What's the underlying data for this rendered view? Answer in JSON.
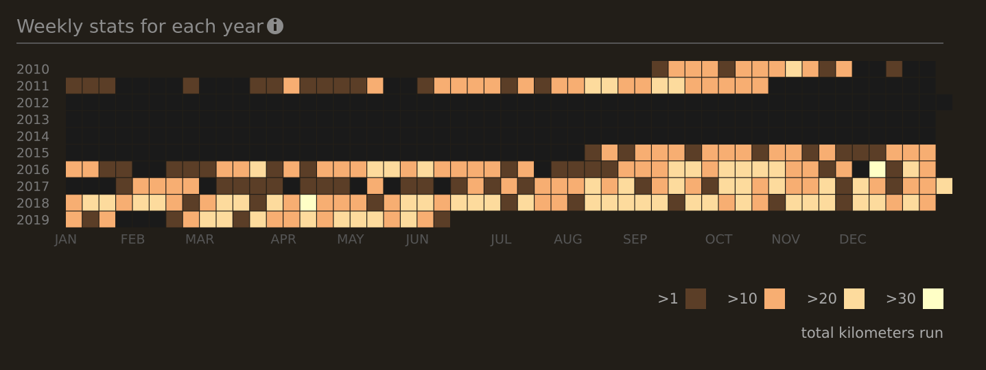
{
  "chart_data": {
    "type": "heatmap",
    "title": "Weekly stats for each year",
    "empty_color": "#1a1a1a",
    "series": [
      {
        "name": "2010",
        "values": [
          null,
          null,
          null,
          null,
          null,
          null,
          null,
          null,
          null,
          null,
          null,
          null,
          null,
          null,
          null,
          null,
          null,
          null,
          null,
          null,
          null,
          null,
          null,
          null,
          null,
          null,
          null,
          null,
          null,
          null,
          null,
          null,
          null,
          null,
          null,
          1,
          10,
          10,
          10,
          1,
          10,
          10,
          10,
          20,
          10,
          1,
          10,
          0,
          0,
          1,
          0,
          0,
          null
        ]
      },
      {
        "name": "2011",
        "values": [
          1,
          1,
          1,
          0,
          0,
          0,
          0,
          1,
          0,
          0,
          0,
          1,
          1,
          10,
          1,
          1,
          1,
          1,
          10,
          0,
          0,
          1,
          10,
          10,
          10,
          10,
          1,
          10,
          1,
          10,
          10,
          20,
          20,
          10,
          10,
          20,
          20,
          10,
          10,
          10,
          10,
          10,
          0,
          0,
          0,
          0,
          0,
          0,
          0,
          0,
          0,
          0,
          null
        ]
      },
      {
        "name": "2012",
        "values": [
          0,
          0,
          0,
          0,
          0,
          0,
          0,
          0,
          0,
          0,
          0,
          0,
          0,
          0,
          0,
          0,
          0,
          0,
          0,
          0,
          0,
          0,
          0,
          0,
          0,
          0,
          0,
          0,
          0,
          0,
          0,
          0,
          0,
          0,
          0,
          0,
          0,
          0,
          0,
          0,
          0,
          0,
          0,
          0,
          0,
          0,
          0,
          0,
          0,
          0,
          0,
          0,
          0
        ]
      },
      {
        "name": "2013",
        "values": [
          0,
          0,
          0,
          0,
          0,
          0,
          0,
          0,
          0,
          0,
          0,
          0,
          0,
          0,
          0,
          0,
          0,
          0,
          0,
          0,
          0,
          0,
          0,
          0,
          0,
          0,
          0,
          0,
          0,
          0,
          0,
          0,
          0,
          0,
          0,
          0,
          0,
          0,
          0,
          0,
          0,
          0,
          0,
          0,
          0,
          0,
          0,
          0,
          0,
          0,
          0,
          0,
          null
        ]
      },
      {
        "name": "2014",
        "values": [
          0,
          0,
          0,
          0,
          0,
          0,
          0,
          0,
          0,
          0,
          0,
          0,
          0,
          0,
          0,
          0,
          0,
          0,
          0,
          0,
          0,
          0,
          0,
          0,
          0,
          0,
          0,
          0,
          0,
          0,
          0,
          0,
          0,
          0,
          0,
          0,
          0,
          0,
          0,
          0,
          0,
          0,
          0,
          0,
          0,
          0,
          0,
          0,
          0,
          0,
          0,
          0,
          null
        ]
      },
      {
        "name": "2015",
        "values": [
          0,
          0,
          0,
          0,
          0,
          0,
          0,
          0,
          0,
          0,
          0,
          0,
          0,
          0,
          0,
          0,
          0,
          0,
          0,
          0,
          0,
          0,
          0,
          0,
          0,
          0,
          0,
          0,
          0,
          0,
          0,
          1,
          10,
          1,
          10,
          10,
          10,
          1,
          10,
          10,
          10,
          1,
          10,
          10,
          1,
          10,
          1,
          1,
          1,
          10,
          10,
          10,
          null
        ]
      },
      {
        "name": "2016",
        "values": [
          10,
          10,
          1,
          1,
          0,
          0,
          1,
          1,
          1,
          10,
          10,
          20,
          1,
          10,
          1,
          10,
          10,
          10,
          20,
          20,
          10,
          20,
          10,
          10,
          10,
          10,
          1,
          10,
          0,
          1,
          1,
          1,
          1,
          10,
          10,
          10,
          20,
          20,
          10,
          20,
          20,
          20,
          20,
          10,
          10,
          1,
          10,
          0,
          30,
          1,
          20,
          10,
          null
        ]
      },
      {
        "name": "2017",
        "values": [
          0,
          0,
          0,
          1,
          10,
          10,
          10,
          10,
          0,
          1,
          1,
          1,
          1,
          0,
          1,
          1,
          1,
          0,
          10,
          0,
          1,
          1,
          0,
          1,
          10,
          1,
          10,
          1,
          10,
          10,
          10,
          20,
          10,
          20,
          1,
          10,
          20,
          10,
          1,
          20,
          20,
          10,
          20,
          10,
          10,
          20,
          1,
          20,
          10,
          1,
          10,
          10,
          20
        ]
      },
      {
        "name": "2018",
        "values": [
          10,
          20,
          20,
          10,
          20,
          20,
          10,
          1,
          10,
          20,
          20,
          1,
          20,
          10,
          30,
          10,
          10,
          10,
          1,
          10,
          20,
          20,
          10,
          20,
          20,
          20,
          1,
          20,
          10,
          10,
          1,
          20,
          20,
          20,
          20,
          20,
          1,
          20,
          20,
          10,
          20,
          10,
          1,
          20,
          20,
          20,
          1,
          20,
          20,
          10,
          20,
          10,
          null
        ]
      },
      {
        "name": "2019",
        "values": [
          10,
          1,
          10,
          0,
          0,
          0,
          1,
          10,
          20,
          20,
          1,
          20,
          10,
          10,
          20,
          10,
          20,
          20,
          20,
          10,
          20,
          10,
          1,
          null,
          null,
          null,
          null,
          null,
          null,
          null,
          null,
          null,
          null,
          null,
          null,
          null,
          null,
          null,
          null,
          null,
          null,
          null,
          null,
          null,
          null,
          null,
          null,
          null,
          null,
          null,
          null,
          null,
          null
        ]
      }
    ],
    "xticks": [
      {
        "value": 0,
        "label": "JAN"
      },
      {
        "value": 4,
        "label": "FEB"
      },
      {
        "value": 8,
        "label": "MAR"
      },
      {
        "value": 13,
        "label": "APR"
      },
      {
        "value": 17,
        "label": "MAY"
      },
      {
        "value": 21,
        "label": "JUN"
      },
      {
        "value": 26,
        "label": "JUL"
      },
      {
        "value": 30,
        "label": "AUG"
      },
      {
        "value": 34,
        "label": "SEP"
      },
      {
        "value": 39,
        "label": "OCT"
      },
      {
        "value": 43,
        "label": "NOV"
      },
      {
        "value": 47,
        "label": "DEC"
      }
    ],
    "legend": {
      "title": "total kilometers run",
      "items": [
        {
          "label": ">1",
          "value": 1,
          "color": "#5b3e27"
        },
        {
          "label": ">10",
          "value": 10,
          "color": "#f7ae72"
        },
        {
          "label": ">20",
          "value": 20,
          "color": "#fddb9d"
        },
        {
          "label": ">30",
          "value": 30,
          "color": "#ffffc6"
        }
      ]
    }
  }
}
